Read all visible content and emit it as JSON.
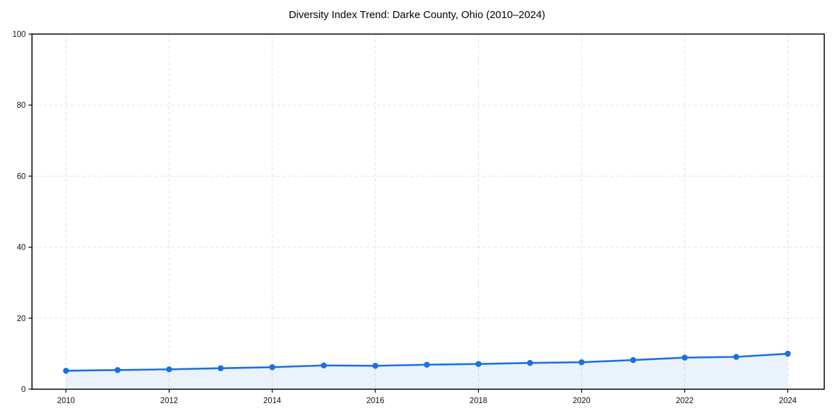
{
  "title": "Diversity Index Trend: Darke County, Ohio (2010–2024)",
  "chart_data": {
    "type": "line",
    "title": "Diversity Index Trend: Darke County, Ohio (2010–2024)",
    "xlabel": "",
    "ylabel": "",
    "x": [
      2010,
      2011,
      2012,
      2013,
      2014,
      2015,
      2016,
      2017,
      2018,
      2019,
      2020,
      2021,
      2022,
      2023,
      2024
    ],
    "series": [
      {
        "name": "Diversity Index",
        "values": [
          5.2,
          5.4,
          5.6,
          5.9,
          6.2,
          6.7,
          6.6,
          6.9,
          7.1,
          7.4,
          7.6,
          8.2,
          8.9,
          9.1,
          10.0
        ]
      }
    ],
    "ylim": [
      0,
      100
    ],
    "yticks": [
      0,
      20,
      40,
      60,
      80,
      100
    ],
    "ytick_labels": [
      "0",
      "20",
      "40",
      "60",
      "80",
      "100"
    ],
    "xticks": [
      2010,
      2012,
      2014,
      2016,
      2018,
      2020,
      2022,
      2024
    ],
    "xtick_labels": [
      "2010",
      "2012",
      "2014",
      "2016",
      "2018",
      "2020",
      "2022",
      "2024"
    ],
    "grid": "dashed horizontal and vertical at labeled ticks",
    "legend": "none",
    "area_fill": true,
    "marker": "circle",
    "colors": {
      "line": "#1b6fe0",
      "fill": "rgba(27,111,224,0.09)",
      "grid": "#e2e2e2",
      "axis": "#000000",
      "tick_text": "#111111"
    }
  }
}
